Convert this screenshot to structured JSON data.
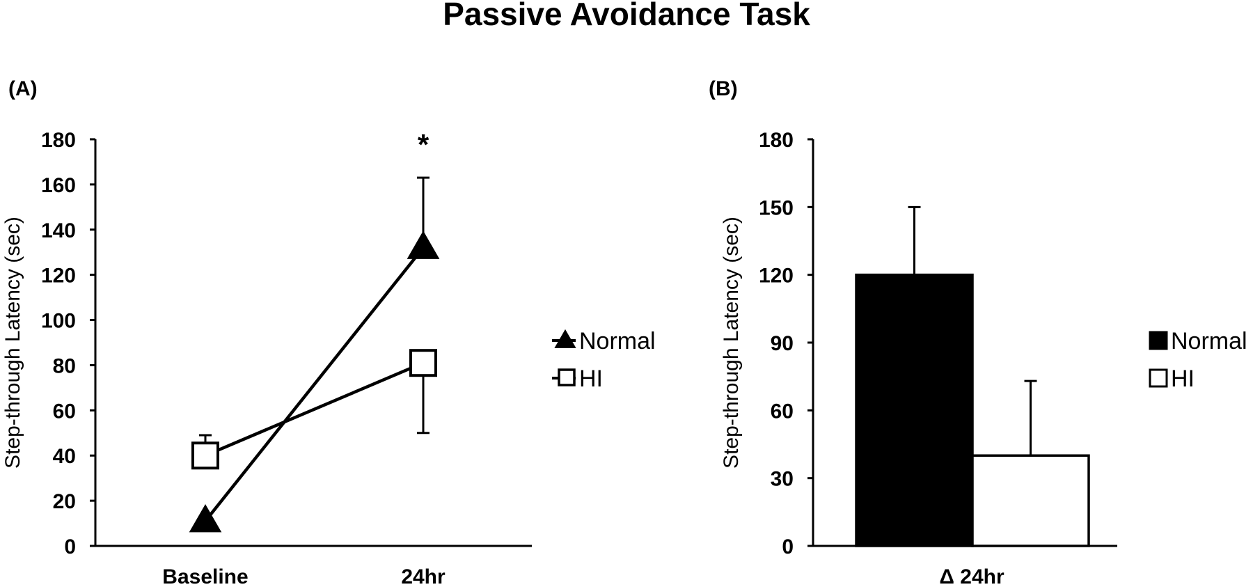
{
  "title": "Passive Avoidance Task",
  "chart_data": [
    {
      "panel_label": "(A)",
      "type": "line",
      "ylabel": "Step-through Latency (sec)",
      "ylim": [
        0,
        180
      ],
      "yticks": [
        0,
        20,
        40,
        60,
        80,
        100,
        120,
        140,
        160,
        180
      ],
      "ytick_labels": [
        "0",
        "20",
        "40",
        "60",
        "80",
        "100",
        "120",
        "140",
        "160",
        "180"
      ],
      "categories": [
        "Baseline",
        "24hr"
      ],
      "series": [
        {
          "name": "Normal",
          "marker": "filled-triangle",
          "values": [
            11,
            132
          ],
          "error_upper": [
            0,
            163
          ]
        },
        {
          "name": "HI",
          "marker": "open-square",
          "values": [
            40,
            81
          ],
          "error_upper": [
            49,
            81
          ],
          "error_lower": [
            40,
            50
          ]
        }
      ],
      "annotation": {
        "text": "*",
        "category": "24hr"
      },
      "legend": {
        "position": "right",
        "entries": [
          "Normal",
          "HI"
        ]
      },
      "grid": false
    },
    {
      "panel_label": "(B)",
      "type": "bar",
      "ylabel": "Step-through Latency (sec)",
      "ylim": [
        0,
        180
      ],
      "yticks": [
        0,
        30,
        60,
        90,
        120,
        150,
        180
      ],
      "ytick_labels": [
        "0",
        "30",
        "60",
        "90",
        "120",
        "150",
        "180"
      ],
      "categories": [
        "Δ 24hr"
      ],
      "series": [
        {
          "name": "Normal",
          "fill": "#000000",
          "values": [
            120
          ],
          "error_upper": [
            150
          ]
        },
        {
          "name": "HI",
          "fill": "#ffffff",
          "values": [
            40
          ],
          "error_upper": [
            73
          ]
        }
      ],
      "legend": {
        "position": "right",
        "entries": [
          "Normal",
          "HI"
        ]
      },
      "grid": false
    }
  ]
}
